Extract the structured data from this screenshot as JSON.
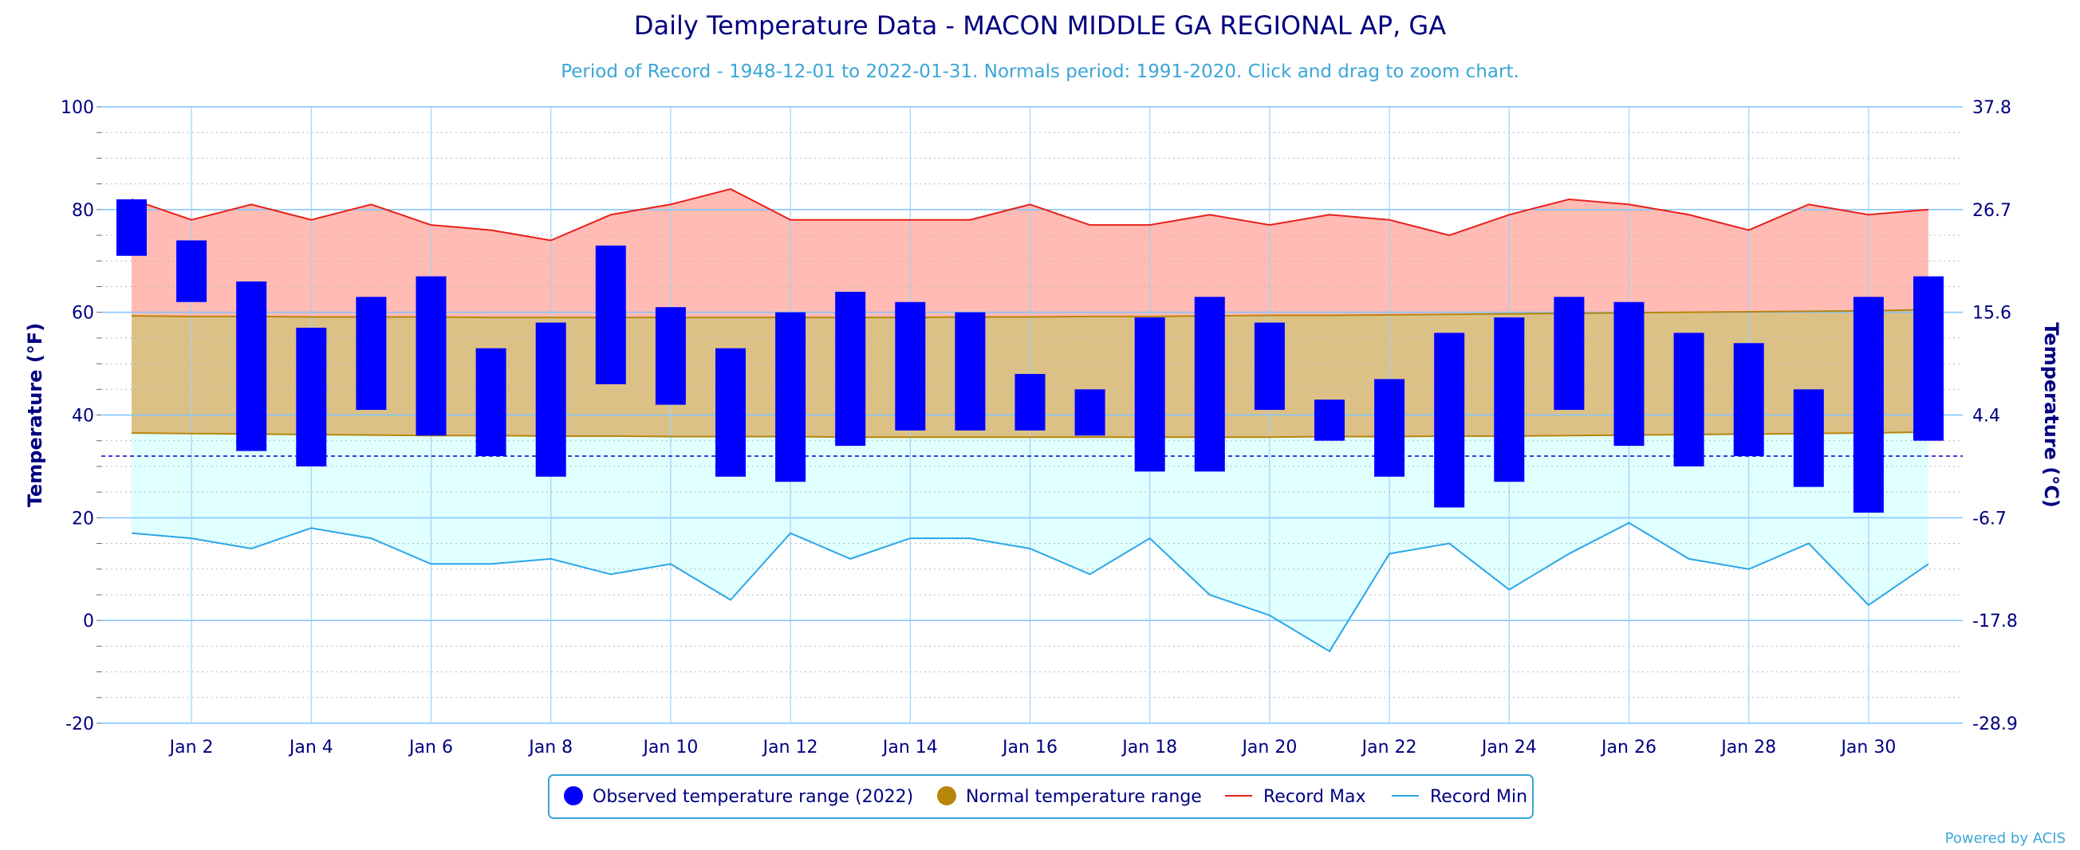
{
  "chart_data": {
    "type": "bar",
    "title": "Daily Temperature Data - MACON MIDDLE GA REGIONAL AP, GA",
    "subtitle": "Period of Record - 1948-12-01 to 2022-01-31. Normals period: 1991-2020. Click and drag to zoom chart.",
    "ylabel": "Temperature (°F)",
    "ylabel_right": "Temperature (°C)",
    "ylim": [
      -20,
      100
    ],
    "y_ticks": [
      -20,
      0,
      20,
      40,
      60,
      80,
      100
    ],
    "y_ticks_right": [
      "-28.9",
      "-17.8",
      "-6.7",
      "4.4",
      "15.6",
      "26.7",
      "37.8"
    ],
    "freezing_line": 32,
    "grid": true,
    "days": [
      1,
      2,
      3,
      4,
      5,
      6,
      7,
      8,
      9,
      10,
      11,
      12,
      13,
      14,
      15,
      16,
      17,
      18,
      19,
      20,
      21,
      22,
      23,
      24,
      25,
      26,
      27,
      28,
      29,
      30,
      31
    ],
    "x_tick_labels": [
      {
        "day": 2,
        "label": "Jan 2"
      },
      {
        "day": 4,
        "label": "Jan 4"
      },
      {
        "day": 6,
        "label": "Jan 6"
      },
      {
        "day": 8,
        "label": "Jan 8"
      },
      {
        "day": 10,
        "label": "Jan 10"
      },
      {
        "day": 12,
        "label": "Jan 12"
      },
      {
        "day": 14,
        "label": "Jan 14"
      },
      {
        "day": 16,
        "label": "Jan 16"
      },
      {
        "day": 18,
        "label": "Jan 18"
      },
      {
        "day": 20,
        "label": "Jan 20"
      },
      {
        "day": 22,
        "label": "Jan 22"
      },
      {
        "day": 24,
        "label": "Jan 24"
      },
      {
        "day": 26,
        "label": "Jan 26"
      },
      {
        "day": 28,
        "label": "Jan 28"
      },
      {
        "day": 30,
        "label": "Jan 30"
      }
    ],
    "series": [
      {
        "name": "Observed temperature range (2022)",
        "color": "#0000ff",
        "low": [
          71,
          62,
          33,
          30,
          41,
          36,
          32,
          28,
          46,
          42,
          28,
          27,
          34,
          37,
          37,
          37,
          36,
          29,
          29,
          41,
          35,
          28,
          22,
          27,
          41,
          34,
          30,
          32,
          26,
          21,
          35
        ],
        "high": [
          82,
          74,
          66,
          57,
          63,
          67,
          53,
          58,
          73,
          61,
          53,
          60,
          64,
          62,
          60,
          48,
          45,
          59,
          63,
          58,
          43,
          47,
          56,
          59,
          63,
          62,
          56,
          54,
          45,
          63,
          67
        ]
      },
      {
        "name": "Normal temperature range",
        "color": "#b8860b",
        "low": [
          36.5,
          36.4,
          36.3,
          36.2,
          36.1,
          36.0,
          36.0,
          35.9,
          35.9,
          35.8,
          35.8,
          35.8,
          35.7,
          35.7,
          35.7,
          35.7,
          35.7,
          35.7,
          35.7,
          35.7,
          35.8,
          35.8,
          35.9,
          35.9,
          36.0,
          36.1,
          36.2,
          36.3,
          36.4,
          36.5,
          36.7
        ],
        "high": [
          59.3,
          59.2,
          59.2,
          59.1,
          59.1,
          59.1,
          59.0,
          59.0,
          59.0,
          59.0,
          59.0,
          59.0,
          59.0,
          59.0,
          59.1,
          59.1,
          59.2,
          59.2,
          59.3,
          59.4,
          59.4,
          59.5,
          59.6,
          59.7,
          59.8,
          59.9,
          60.0,
          60.1,
          60.2,
          60.3,
          60.5
        ]
      },
      {
        "name": "Record Max",
        "color": "#e8201a",
        "values": [
          82,
          78,
          81,
          78,
          81,
          77,
          76,
          74,
          79,
          81,
          84,
          78,
          78,
          78,
          78,
          81,
          77,
          77,
          79,
          77,
          79,
          78,
          75,
          79,
          82,
          81,
          79,
          76,
          81,
          79,
          80
        ]
      },
      {
        "name": "Record Min",
        "color": "#2aa6e8",
        "values": [
          17,
          16,
          14,
          18,
          16,
          11,
          11,
          12,
          9,
          11,
          4,
          17,
          12,
          16,
          16,
          14,
          9,
          16,
          5,
          1,
          -6,
          13,
          15,
          6,
          13,
          19,
          12,
          10,
          15,
          3,
          11
        ]
      }
    ],
    "legend_position": "bottom-center",
    "credit": "Powered by ACIS"
  }
}
